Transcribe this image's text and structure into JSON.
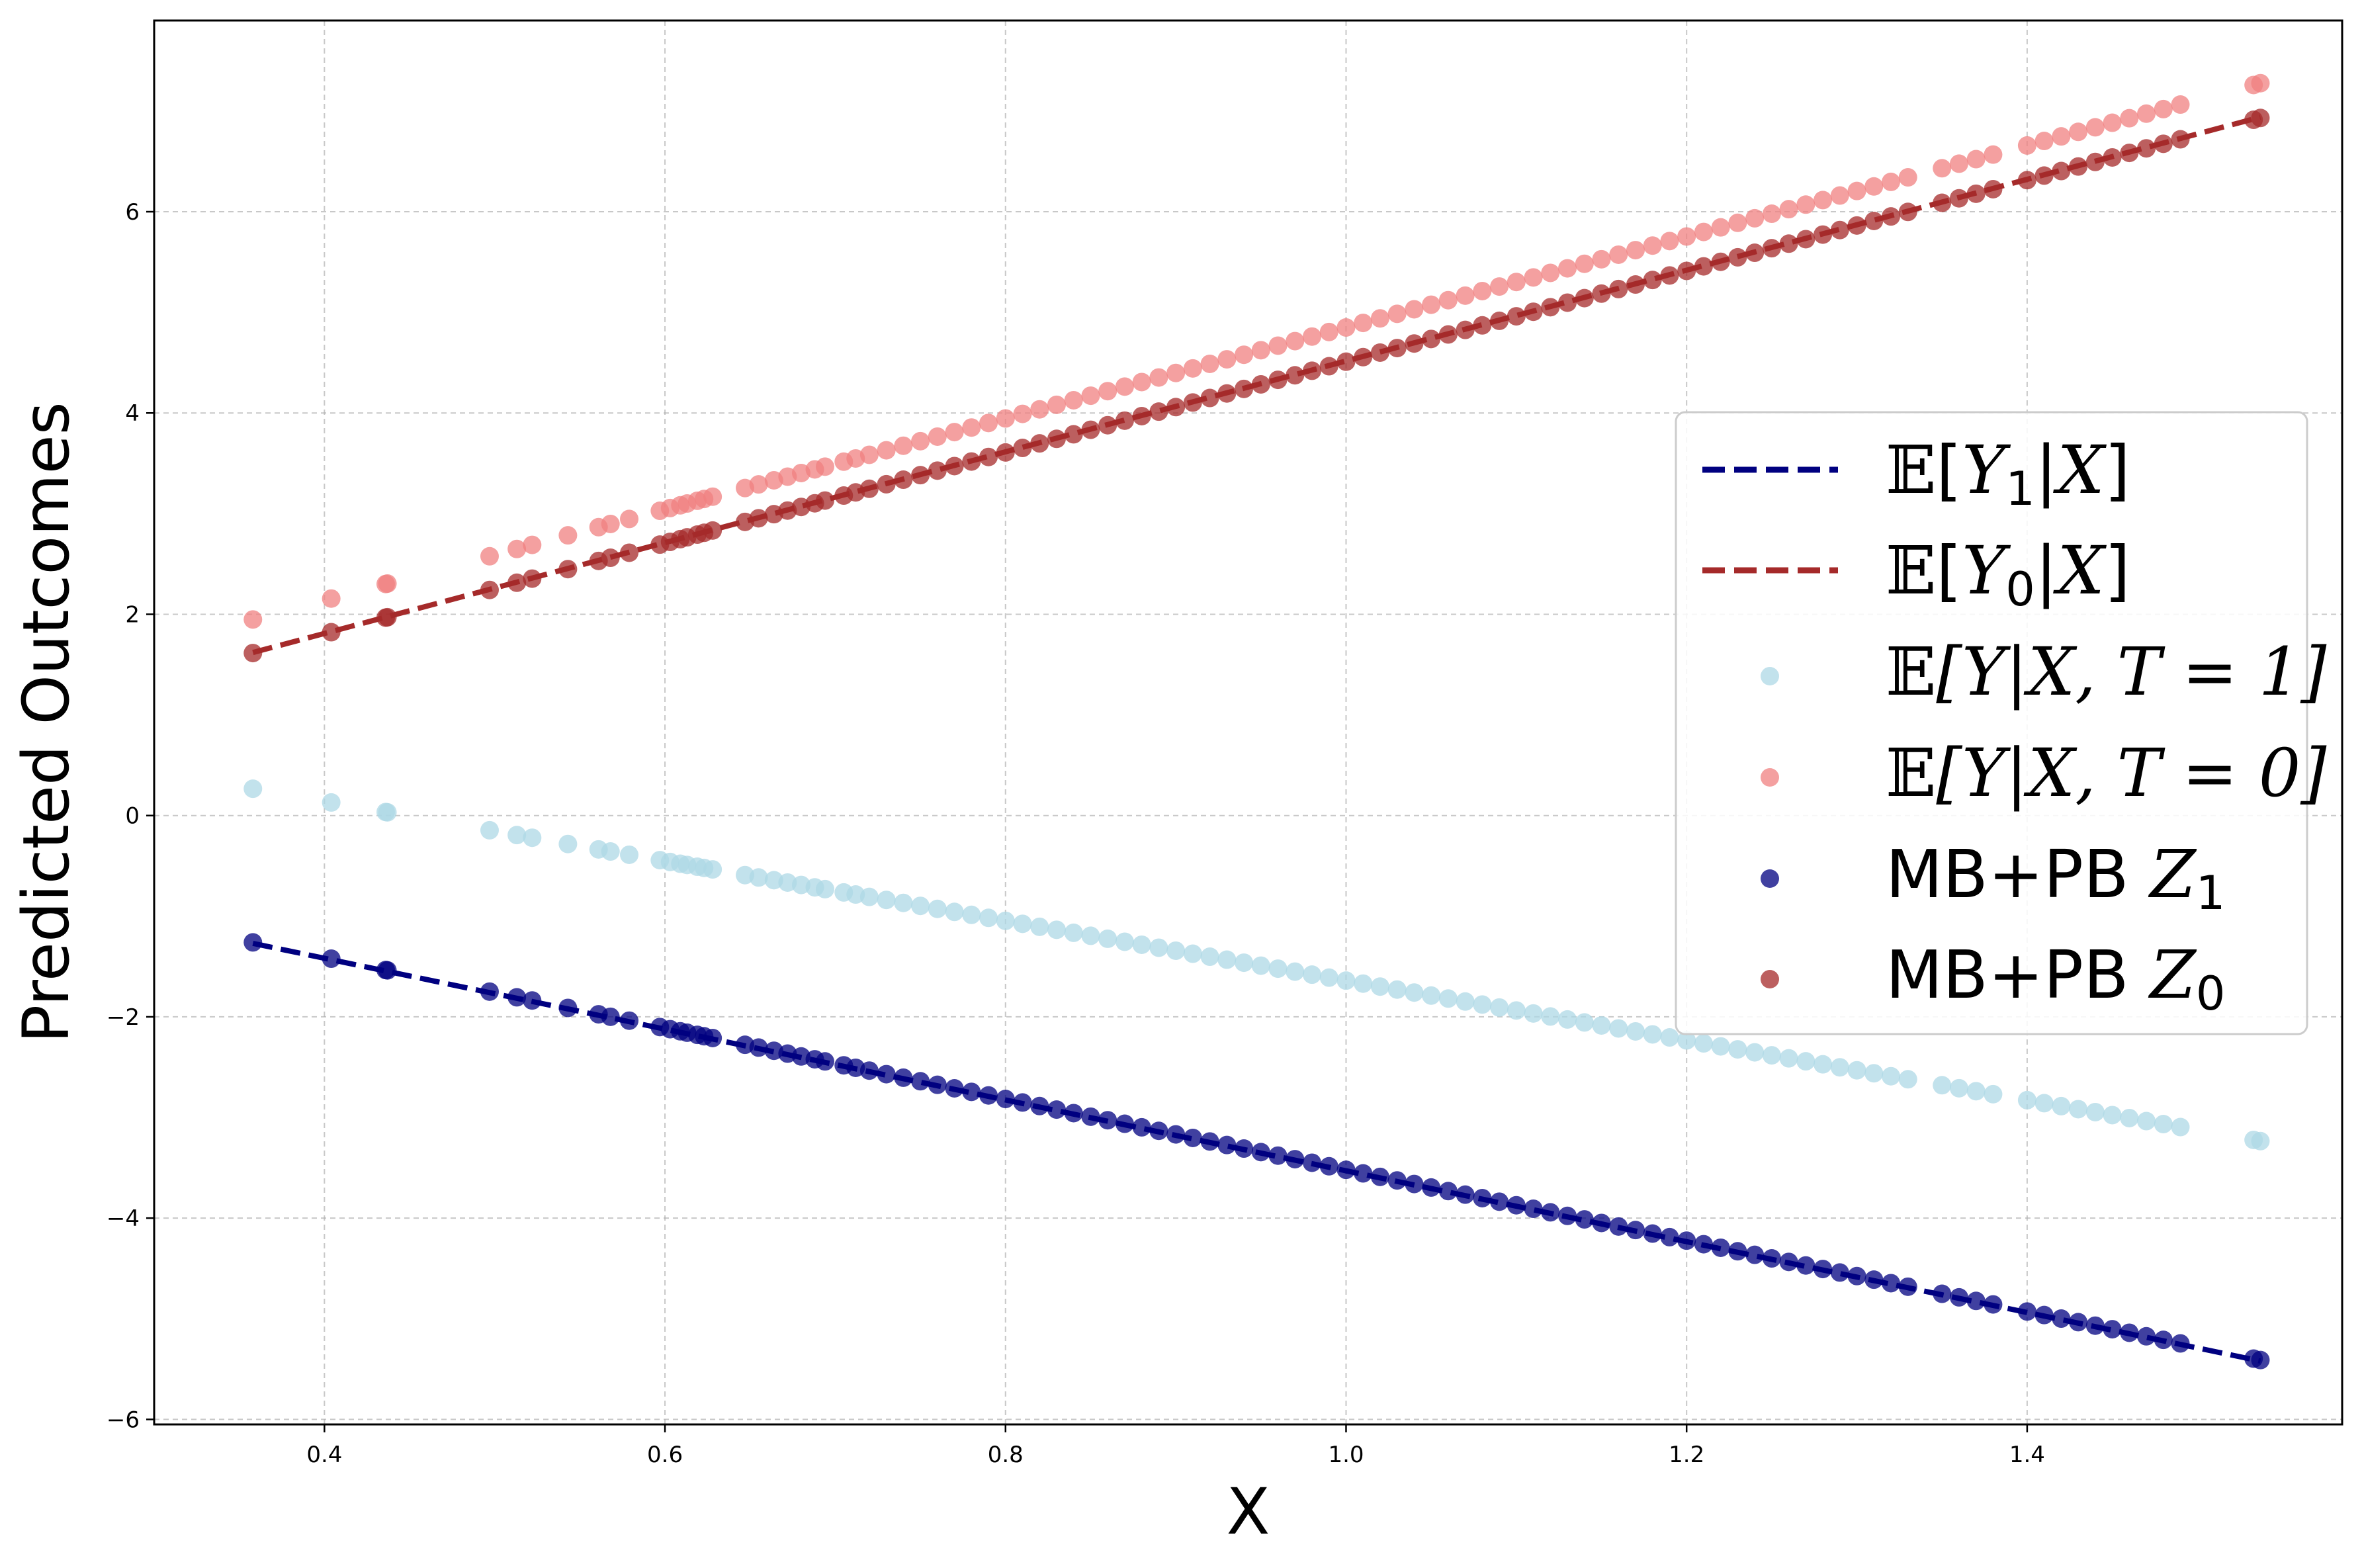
{
  "chart_data": {
    "type": "scatter",
    "title": "",
    "xlabel": "X",
    "ylabel": "Predicted Outcomes",
    "xlim": [
      0.3,
      1.585
    ],
    "ylim": [
      -6.05,
      7.9
    ],
    "xticks": [
      0.4,
      0.6,
      0.8,
      1.0,
      1.2,
      1.4
    ],
    "xtick_labels": [
      "0.4",
      "0.6",
      "0.8",
      "1.0",
      "1.2",
      "1.4"
    ],
    "yticks": [
      -6,
      -4,
      -2,
      0,
      2,
      4,
      6
    ],
    "ytick_labels": [
      "−6",
      "−4",
      "−2",
      "0",
      "2",
      "4",
      "6"
    ],
    "grid": true,
    "legend_position": "center-right",
    "x_sample": [
      0.358,
      0.404,
      0.436,
      0.437,
      0.497,
      0.513,
      0.522,
      0.543,
      0.561,
      0.568,
      0.579,
      0.597,
      0.603,
      0.609,
      0.613,
      0.619,
      0.623,
      0.628,
      0.647,
      0.655,
      0.664,
      0.672,
      0.68,
      0.688,
      0.694,
      0.705,
      0.712,
      0.72,
      0.73,
      0.74,
      0.75,
      0.76,
      0.77,
      0.78,
      0.79,
      0.8,
      0.81,
      0.82,
      0.83,
      0.84,
      0.85,
      0.86,
      0.87,
      0.88,
      0.89,
      0.9,
      0.91,
      0.92,
      0.93,
      0.94,
      0.95,
      0.96,
      0.97,
      0.98,
      0.99,
      1.0,
      1.01,
      1.02,
      1.03,
      1.04,
      1.05,
      1.06,
      1.07,
      1.08,
      1.09,
      1.1,
      1.11,
      1.12,
      1.13,
      1.14,
      1.15,
      1.16,
      1.17,
      1.18,
      1.19,
      1.2,
      1.21,
      1.22,
      1.23,
      1.24,
      1.25,
      1.26,
      1.27,
      1.28,
      1.29,
      1.3,
      1.31,
      1.32,
      1.33,
      1.35,
      1.36,
      1.37,
      1.38,
      1.4,
      1.41,
      1.42,
      1.43,
      1.44,
      1.45,
      1.46,
      1.47,
      1.48,
      1.49,
      1.533,
      1.537
    ],
    "series": [
      {
        "name": "𝔼[Y₁|X]",
        "kind": "dashed-line",
        "color": "#000080",
        "x": [
          0.358,
          1.537
        ],
        "y": [
          -1.27,
          -5.42
        ]
      },
      {
        "name": "𝔼[Y₀|X]",
        "kind": "dashed-line",
        "color": "#a52a2a",
        "x": [
          0.358,
          1.537
        ],
        "y": [
          1.62,
          6.94
        ]
      },
      {
        "name": "𝔼[Y|X,T=1]",
        "kind": "scatter",
        "color": "#add8e6",
        "line": {
          "intercept": 1.33,
          "slope": -2.97
        }
      },
      {
        "name": "𝔼[Y|X,T=0]",
        "kind": "scatter",
        "color": "#f08080",
        "line": {
          "intercept": 0.33,
          "slope": 4.52
        }
      },
      {
        "name": "MB+PB Z₁",
        "kind": "scatter",
        "color": "#000080",
        "line": {
          "intercept": 0.0,
          "slope": -3.52
        }
      },
      {
        "name": "MB+PB Z₀",
        "kind": "scatter",
        "color": "#a52a2a",
        "line": {
          "intercept": 0.0,
          "slope": 4.51
        }
      }
    ]
  },
  "legend": [
    {
      "bb": "𝔼",
      "pre": "[",
      "v1": "Y",
      "sub": "1",
      "post": "|",
      "v2": "X",
      "end": "]"
    },
    {
      "bb": "𝔼",
      "pre": "[",
      "v1": "Y",
      "sub": "0",
      "post": "|",
      "v2": "X",
      "end": "]"
    },
    {
      "bb": "𝔼",
      "text": "[Y|X, T = 1]"
    },
    {
      "bb": "𝔼",
      "text": "[Y|X, T = 0]"
    },
    {
      "plain": "MB+PB ",
      "v1": "Z",
      "sub": "1"
    },
    {
      "plain": "MB+PB ",
      "v1": "Z",
      "sub": "0"
    }
  ]
}
